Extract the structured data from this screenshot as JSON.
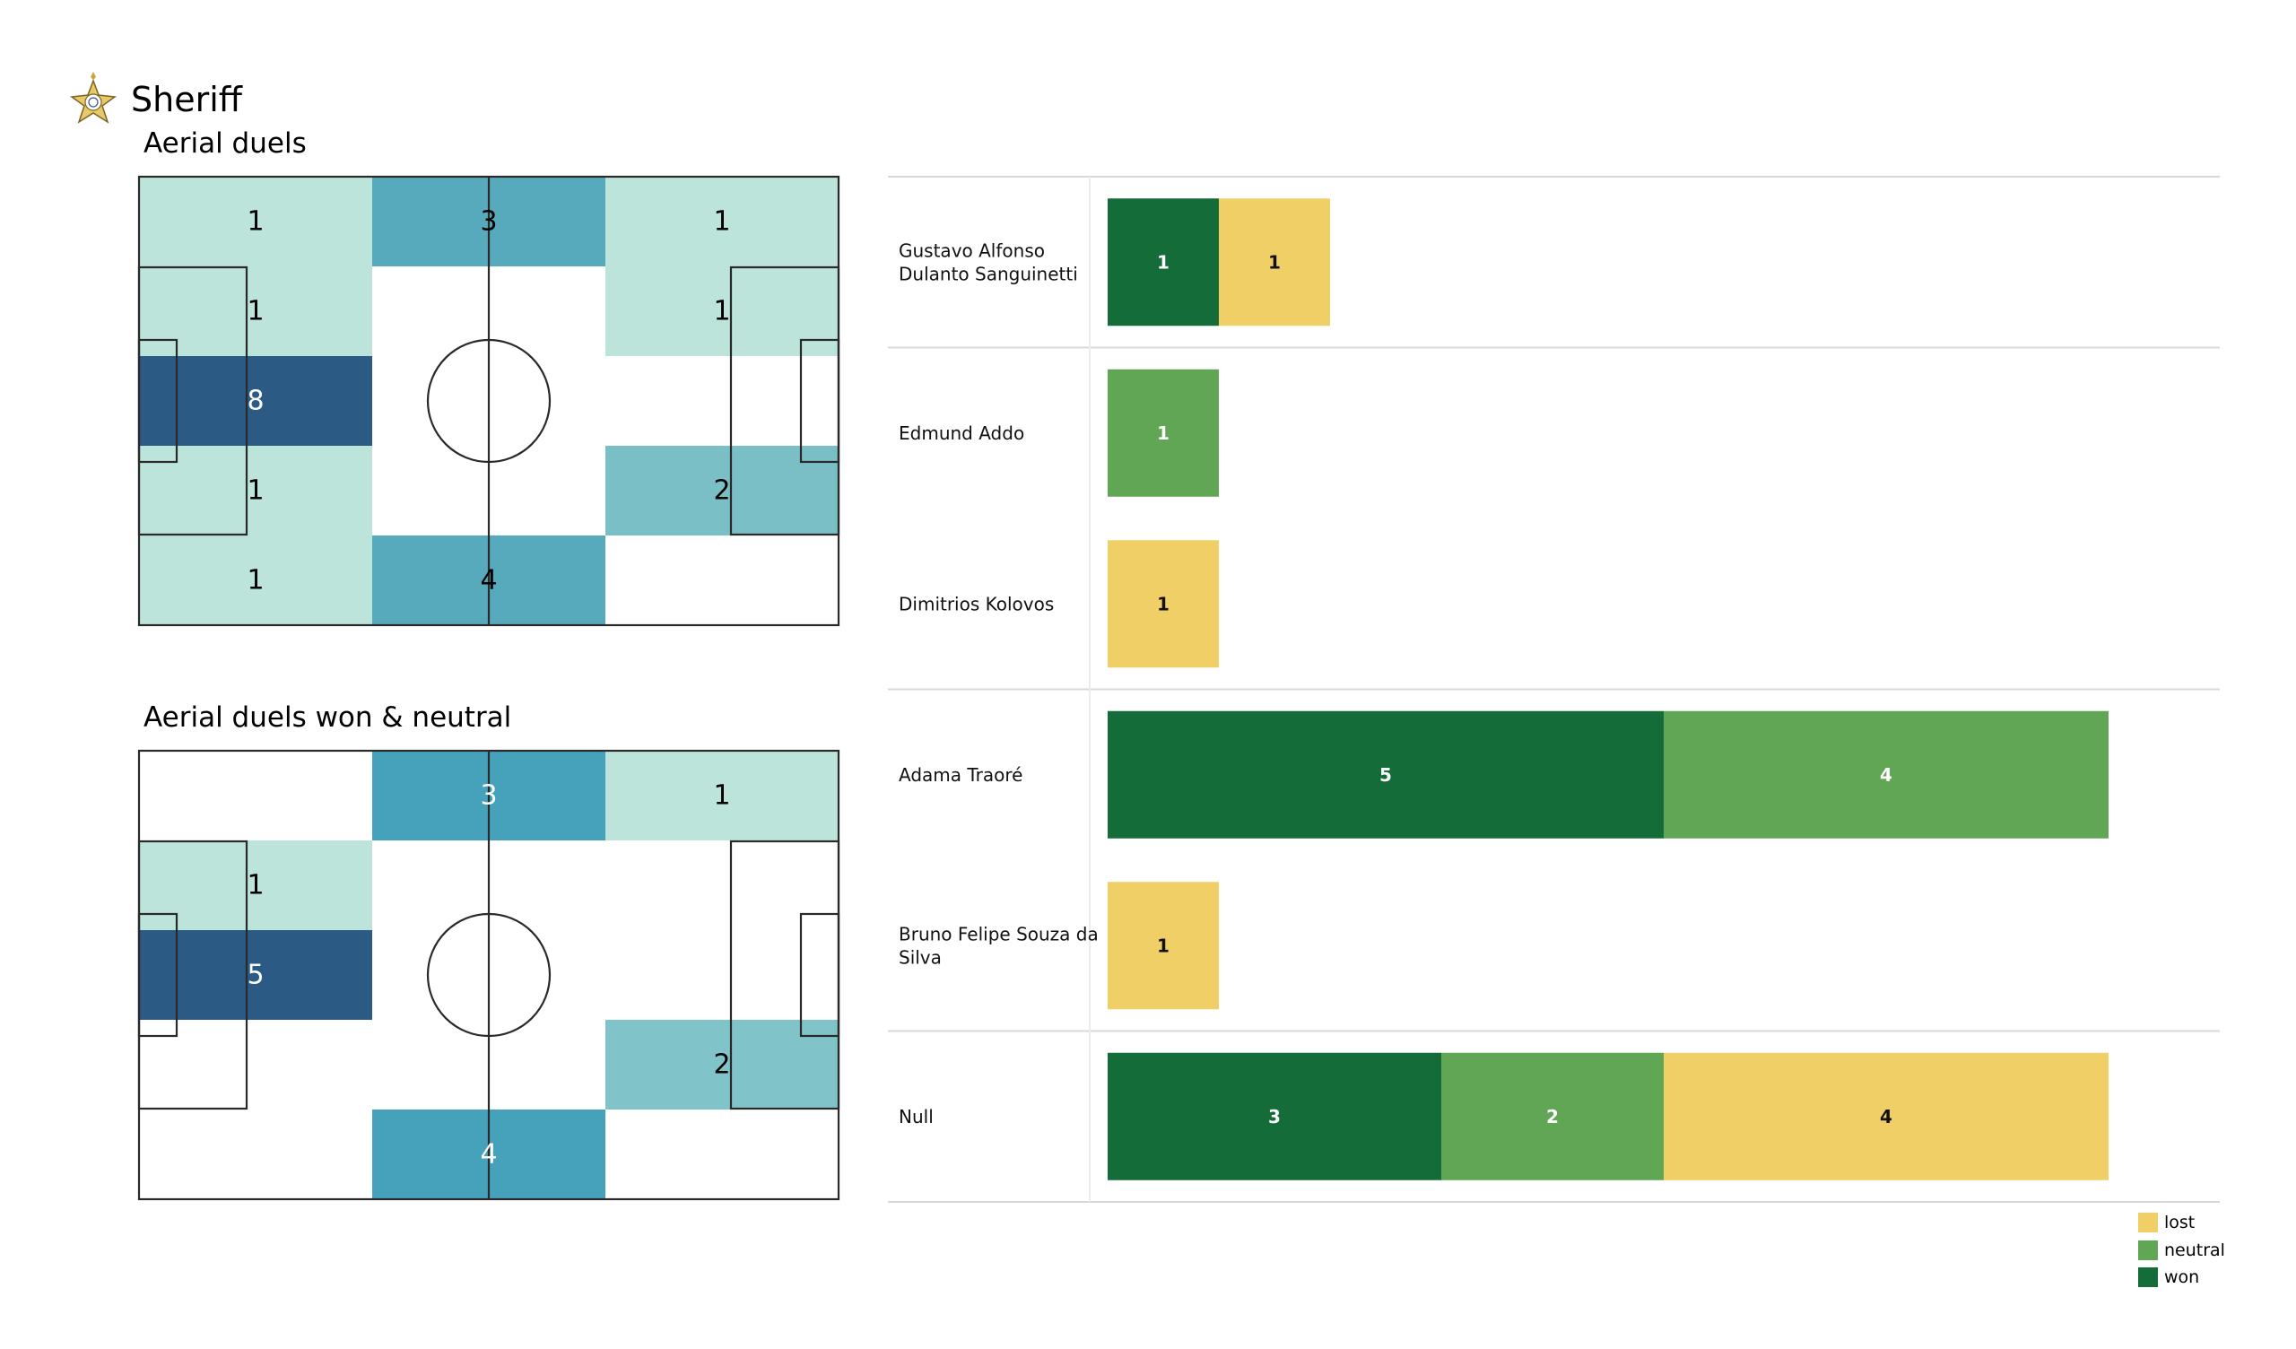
{
  "team": {
    "name": "Sheriff",
    "logo_icon": "sheriff-star-badge-icon"
  },
  "chart_data": [
    {
      "type": "heatmap",
      "title": "Aerial duels",
      "rows": 5,
      "cols": 3,
      "values": [
        [
          1,
          3,
          1
        ],
        [
          1,
          0,
          1
        ],
        [
          8,
          0,
          0
        ],
        [
          1,
          0,
          2
        ],
        [
          1,
          4,
          0
        ]
      ],
      "colormap": [
        "#bce4da",
        "#7bbfc6",
        "#57aabc",
        "#2b5a84"
      ]
    },
    {
      "type": "heatmap",
      "title": "Aerial duels won & neutral",
      "rows": 5,
      "cols": 3,
      "values": [
        [
          0,
          3,
          1
        ],
        [
          1,
          0,
          0
        ],
        [
          5,
          0,
          0
        ],
        [
          0,
          0,
          2
        ],
        [
          0,
          4,
          0
        ]
      ],
      "colormap": [
        "#bce4da",
        "#80c3c9",
        "#46a1bb",
        "#2b5a84"
      ]
    },
    {
      "type": "bar",
      "orientation": "horizontal",
      "stacked": true,
      "categories": [
        "Gustavo Alfonso Dulanto Sanguinetti",
        "Edmund Addo",
        "Dimitrios Kolovos",
        "Adama Traoré",
        "Bruno Felipe Souza da Silva",
        "Null"
      ],
      "groups": [
        [
          0
        ],
        [
          1,
          2
        ],
        [
          3,
          4
        ],
        [
          5
        ]
      ],
      "series": [
        {
          "name": "won",
          "color": "#146c38",
          "values": [
            1,
            0,
            0,
            5,
            0,
            3
          ]
        },
        {
          "name": "neutral",
          "color": "#61a654",
          "values": [
            0,
            1,
            0,
            4,
            0,
            2
          ]
        },
        {
          "name": "lost",
          "color": "#f0d066",
          "values": [
            1,
            0,
            1,
            0,
            1,
            4
          ]
        }
      ],
      "legend": {
        "position": "bottom-right",
        "entries": [
          {
            "label": "lost",
            "color": "#f0d066"
          },
          {
            "label": "neutral",
            "color": "#61a654"
          },
          {
            "label": "won",
            "color": "#146c38"
          }
        ]
      }
    }
  ]
}
